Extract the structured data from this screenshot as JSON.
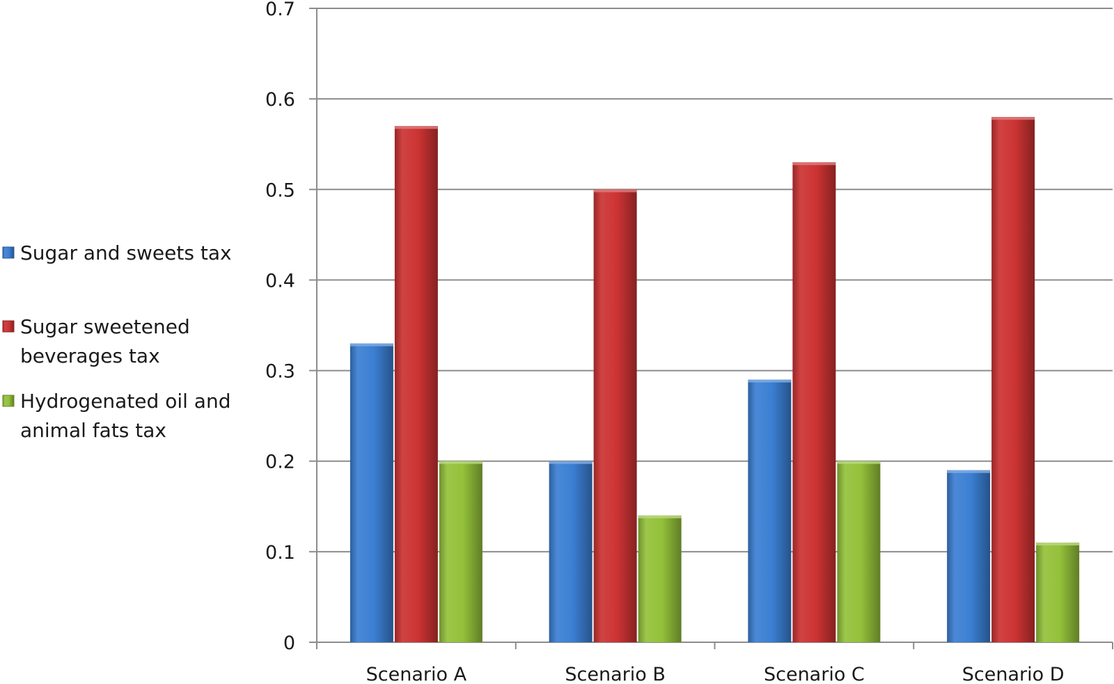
{
  "chart_data": {
    "type": "bar",
    "title": "",
    "xlabel": "",
    "ylabel": "",
    "categories": [
      "Scenario A",
      "Scenario B",
      "Scenario C",
      "Scenario D"
    ],
    "series": [
      {
        "name": "Sugar and sweets tax",
        "values": [
          0.33,
          0.2,
          0.29,
          0.19
        ],
        "color": "#3b7fd3",
        "legend_lines": [
          "Sugar and sweets tax"
        ]
      },
      {
        "name": "Sugar sweetened beverages tax",
        "values": [
          0.57,
          0.5,
          0.53,
          0.58
        ],
        "color": "#cc3333",
        "legend_lines": [
          "Sugar sweetened",
          "beverages tax"
        ]
      },
      {
        "name": "Hydrogenated oil and animal fats tax",
        "values": [
          0.2,
          0.14,
          0.2,
          0.11
        ],
        "color": "#93c13a",
        "legend_lines": [
          "Hydrogenated oil and",
          "animal fats tax"
        ]
      }
    ],
    "ylim": [
      0,
      0.7
    ],
    "yticks": [
      "0",
      "0.1",
      "0.2",
      "0.3",
      "0.4",
      "0.5",
      "0.6",
      "0.7"
    ],
    "grid": true,
    "legend_position": "left"
  }
}
